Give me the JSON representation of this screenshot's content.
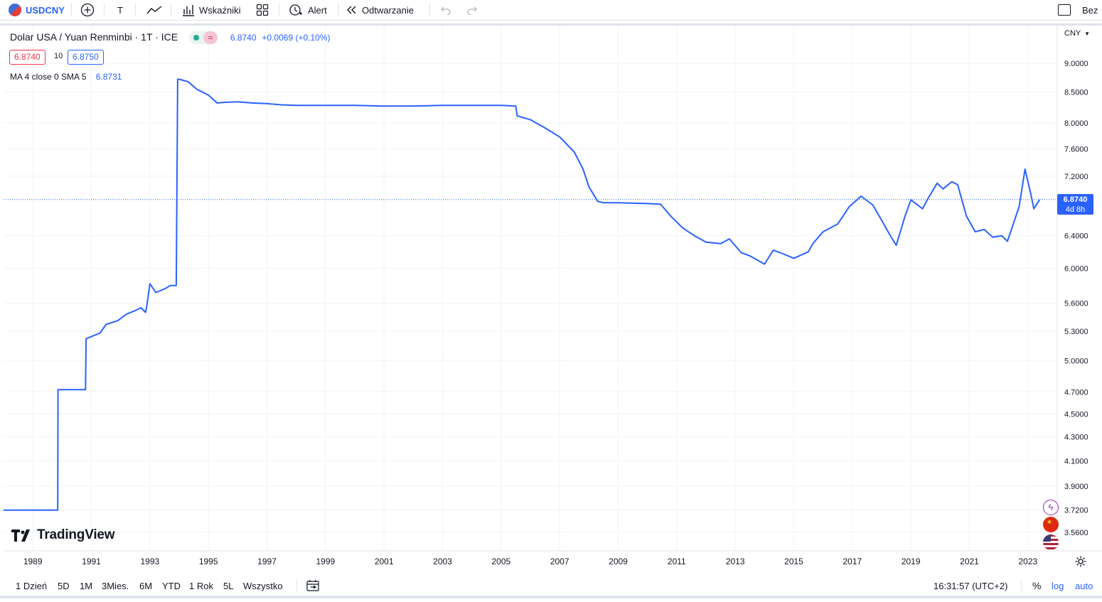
{
  "toolbar": {
    "symbol": "USDCNY",
    "text_tool": "T",
    "indicators": "Wskaźniki",
    "alert": "Alert",
    "replay": "Odtwarzanie",
    "right_label": "Bez"
  },
  "legend": {
    "title": "Dolar USA / Yuan Renminbi · 1T · ICE",
    "price": "6.8740",
    "change": "+0.0069 (+0.10%)",
    "bid": "6.8740",
    "spread": "10",
    "ask": "6.8750",
    "ma_label": "MA 4 close 0 SMA 5",
    "ma_value": "6.8731"
  },
  "currency_selector": "CNY",
  "price_badge": {
    "value": "6.8740",
    "countdown": "4d 8h"
  },
  "brand": "TradingView",
  "bottom": {
    "ranges": [
      "1 Dzień",
      "5D",
      "1M",
      "3Mies.",
      "6M",
      "YTD",
      "1 Rok",
      "5L",
      "Wszystko"
    ],
    "clock": "16:31:57 (UTC+2)",
    "percent": "%",
    "log": "log",
    "auto": "auto"
  },
  "colors": {
    "line": "#2962ff",
    "red": "#f23645",
    "blue": "#2962ff",
    "axis_badge": "#2962ff"
  },
  "chart_data": {
    "type": "line",
    "title": "Dolar USA / Yuan Renminbi · 1T · ICE",
    "log_scale": true,
    "grid": true,
    "x_ticks": [
      "1989",
      "1991",
      "1993",
      "1995",
      "1997",
      "1999",
      "2001",
      "2003",
      "2005",
      "2007",
      "2009",
      "2011",
      "2013",
      "2015",
      "2017",
      "2019",
      "2021",
      "2023"
    ],
    "y_ticks": [
      "9.0000",
      "8.5000",
      "8.0000",
      "7.6000",
      "7.2000",
      "6.4000",
      "6.0000",
      "5.6000",
      "5.3000",
      "5.0000",
      "4.7000",
      "4.5000",
      "4.3000",
      "4.1000",
      "3.9000",
      "3.7200",
      "3.5600"
    ],
    "ylim": [
      3.47,
      9.4
    ],
    "xlim": [
      1988.0,
      2024.0
    ],
    "series": [
      {
        "x": [
          1988.0,
          1989.85,
          1989.86,
          1990.8,
          1990.82,
          1991.3,
          1991.5,
          1991.9,
          1992.2,
          1992.5,
          1992.7,
          1992.85,
          1992.9,
          1993.0,
          1993.2,
          1993.5,
          1993.7,
          1993.9,
          1993.95,
          1994.0,
          1994.3,
          1994.6,
          1995.0,
          1995.3,
          1995.5,
          1996.0,
          1996.5,
          1997.0,
          1997.5,
          1998.0,
          1998.5,
          1999.0,
          2000.0,
          2001.0,
          2002.0,
          2003.0,
          2004.0,
          2005.0,
          2005.5,
          2005.55,
          2006.0,
          2006.5,
          2007.0,
          2007.5,
          2007.8,
          2008.0,
          2008.3,
          2008.5,
          2009.0,
          2010.0,
          2010.45,
          2010.8,
          2011.2,
          2011.6,
          2012.0,
          2012.5,
          2012.8,
          2013.2,
          2013.5,
          2014.0,
          2014.3,
          2014.6,
          2015.0,
          2015.5,
          2015.65,
          2016.0,
          2016.5,
          2016.9,
          2017.3,
          2017.7,
          2018.0,
          2018.3,
          2018.5,
          2018.8,
          2019.0,
          2019.4,
          2019.6,
          2019.9,
          2020.1,
          2020.4,
          2020.6,
          2020.9,
          2021.2,
          2021.5,
          2021.8,
          2022.1,
          2022.3,
          2022.7,
          2022.9,
          2023.1,
          2023.2,
          2023.4
        ],
        "y": [
          3.72,
          3.72,
          4.72,
          4.72,
          5.22,
          5.28,
          5.37,
          5.41,
          5.48,
          5.52,
          5.55,
          5.5,
          5.58,
          5.82,
          5.72,
          5.76,
          5.8,
          5.8,
          8.72,
          8.72,
          8.68,
          8.55,
          8.45,
          8.32,
          8.33,
          8.34,
          8.32,
          8.31,
          8.29,
          8.28,
          8.28,
          8.28,
          8.28,
          8.27,
          8.27,
          8.28,
          8.28,
          8.28,
          8.27,
          8.11,
          8.05,
          7.92,
          7.78,
          7.55,
          7.3,
          7.05,
          6.85,
          6.83,
          6.83,
          6.82,
          6.81,
          6.65,
          6.5,
          6.4,
          6.32,
          6.3,
          6.36,
          6.19,
          6.15,
          6.05,
          6.22,
          6.18,
          6.12,
          6.2,
          6.3,
          6.45,
          6.55,
          6.78,
          6.92,
          6.8,
          6.6,
          6.4,
          6.28,
          6.65,
          6.87,
          6.75,
          6.9,
          7.1,
          7.02,
          7.12,
          7.08,
          6.65,
          6.45,
          6.48,
          6.38,
          6.4,
          6.33,
          6.78,
          7.3,
          6.95,
          6.75,
          6.874
        ]
      }
    ]
  }
}
